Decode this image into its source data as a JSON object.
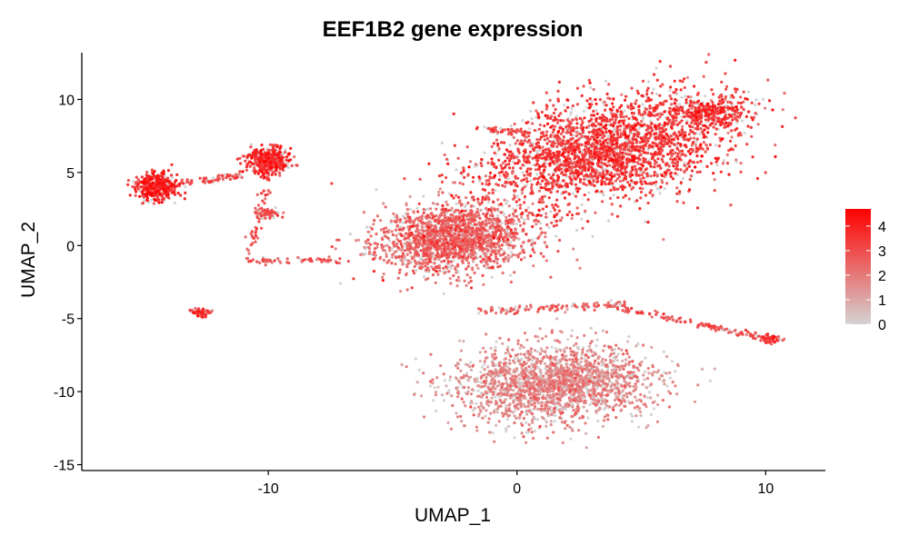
{
  "chart_data": {
    "type": "scatter",
    "title": "EEF1B2 gene expression",
    "xlabel": "UMAP_1",
    "ylabel": "UMAP_2",
    "xlim": [
      -17.5,
      12.4
    ],
    "ylim": [
      -15.4,
      13.2
    ],
    "x_ticks": [
      -10,
      0,
      10
    ],
    "y_ticks": [
      -15,
      -10,
      -5,
      0,
      5,
      10
    ],
    "grid": false,
    "legend": {
      "position": "right",
      "ticks": [
        0,
        1,
        2,
        3,
        4
      ],
      "range": [
        0,
        4.7
      ],
      "low_color": "#d3d3d3",
      "high_color": "#ff0000"
    },
    "clusters": [
      {
        "name": "upper-right-band",
        "center": [
          3.5,
          6.5
        ],
        "spread": [
          5.5,
          3.2
        ],
        "angle_deg": 30,
        "mean_expression": 3.2,
        "points": 2600
      },
      {
        "name": "upper-right-tip",
        "center": [
          7.8,
          9.2
        ],
        "spread": [
          1.5,
          1.0
        ],
        "angle_deg": 0,
        "mean_expression": 3.3,
        "points": 300
      },
      {
        "name": "central-mass",
        "center": [
          -2.5,
          0.5
        ],
        "spread": [
          3.2,
          2.3
        ],
        "angle_deg": 15,
        "mean_expression": 2.3,
        "points": 1800
      },
      {
        "name": "lower-blob",
        "center": [
          1.5,
          -9.5
        ],
        "spread": [
          4.0,
          2.6
        ],
        "angle_deg": 5,
        "mean_expression": 1.5,
        "points": 2000
      },
      {
        "name": "left-small-blob",
        "center": [
          -14.5,
          4.0
        ],
        "spread": [
          0.9,
          0.9
        ],
        "angle_deg": 0,
        "mean_expression": 3.6,
        "points": 400
      },
      {
        "name": "upper-left-blob",
        "center": [
          -10.0,
          5.8
        ],
        "spread": [
          0.9,
          1.0
        ],
        "angle_deg": 0,
        "mean_expression": 3.4,
        "points": 400
      },
      {
        "name": "right-small-blob",
        "center": [
          10.2,
          -6.4
        ],
        "spread": [
          0.4,
          0.3
        ],
        "angle_deg": 0,
        "mean_expression": 3.0,
        "points": 60
      },
      {
        "name": "lower-left-fragment",
        "center": [
          -12.7,
          -4.6
        ],
        "spread": [
          0.4,
          0.25
        ],
        "angle_deg": 0,
        "mean_expression": 3.0,
        "points": 70
      },
      {
        "name": "mid-strand",
        "center": [
          -10.0,
          2.2
        ],
        "spread": [
          0.5,
          0.3
        ],
        "angle_deg": 0,
        "mean_expression": 2.8,
        "points": 60
      }
    ],
    "trails": [
      {
        "from": [
          -13.6,
          4.2
        ],
        "to": [
          -11.0,
          4.8
        ],
        "points": 60,
        "mean_expression": 3.0
      },
      {
        "from": [
          -10.0,
          4.6
        ],
        "to": [
          -10.8,
          -1.0
        ],
        "points": 50,
        "mean_expression": 2.8
      },
      {
        "from": [
          -11.0,
          -1.0
        ],
        "to": [
          -7.0,
          -1.0
        ],
        "points": 60,
        "mean_expression": 2.5
      },
      {
        "from": [
          -1.5,
          -4.5
        ],
        "to": [
          4.5,
          -4.0
        ],
        "points": 120,
        "mean_expression": 2.5
      },
      {
        "from": [
          4.0,
          -4.2
        ],
        "to": [
          10.0,
          -6.3
        ],
        "points": 120,
        "mean_expression": 2.7
      },
      {
        "from": [
          -1.3,
          8.0
        ],
        "to": [
          0.5,
          7.8
        ],
        "points": 40,
        "mean_expression": 3.0
      }
    ]
  }
}
